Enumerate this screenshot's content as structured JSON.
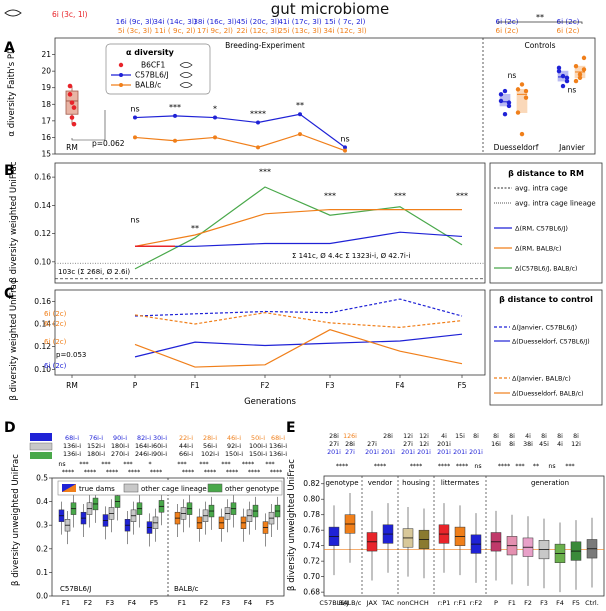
{
  "title": "gut microbiome",
  "colors": {
    "rm": "#e8242a",
    "c57": "#1f22d6",
    "balb": "#f07f1a",
    "green": "#49a84a",
    "gray": "#999999",
    "blue_axis": "#1f22d6"
  },
  "panelA": {
    "letter": "A",
    "ylabel": "α diversity Faith's PD",
    "ylim": [
      15,
      22
    ],
    "yticks": [
      "15",
      "16",
      "17",
      "18",
      "19",
      "20",
      "21"
    ],
    "section_breeding": "Breeding-Experiment",
    "section_controls": "Controls",
    "legend_title": "α diversity",
    "legend": [
      "B6CF1",
      "C57BL6/J",
      "BALB/c"
    ],
    "counts_top": [
      {
        "c57": "",
        "balb": "",
        "rm": "6i (3c, 1l)"
      },
      {
        "c57": "16i (9c, 3l)",
        "balb": "5i (3c, 3l)"
      },
      {
        "c57": "34i (14c, 3l)",
        "balb": "11i ( 9c, 2l)"
      },
      {
        "c57": "38i (16c, 3l)",
        "balb": "17i  9c, 2l)"
      },
      {
        "c57": "45i (20c, 3l)",
        "balb": "22i (12c, 3l)"
      },
      {
        "c57": "41i (17c, 3l)",
        "balb": "25i (13c, 3l)"
      },
      {
        "c57": "15i ( 7c, 2l)",
        "balb": "34i (12c, 3l)"
      },
      {
        "c57": "6i (2c)",
        "balb": "6i (2c)"
      },
      {
        "c57": "6i (2c)",
        "balb": "6i (2c)"
      }
    ],
    "ctrl_sig": "**",
    "rm_label": "RM",
    "pvalue": "p=0.062",
    "sig": [
      "ns",
      "***",
      "*",
      "****",
      "**",
      "ns"
    ],
    "ctrl_ns": [
      "ns",
      "ns"
    ],
    "ctrl_labels": [
      "Duesseldorf",
      "Janvier"
    ],
    "rm_points": [
      18.6,
      18.1,
      16.8,
      19.1,
      17.2,
      17.8
    ],
    "rm_box": {
      "q1": 17.4,
      "med": 18.2,
      "q3": 18.8,
      "lo": 16.8,
      "hi": 19.1
    },
    "c57_line": [
      17.2,
      17.3,
      17.2,
      16.9,
      17.4,
      15.4
    ],
    "balb_line": [
      16.0,
      15.8,
      16.0,
      15.4,
      16.2,
      15.2
    ],
    "duss_c57_points": [
      18.6,
      18.8,
      17.9,
      18.2,
      17.4,
      18.1
    ],
    "duss_balb_points": [
      18.9,
      19.2,
      18.4,
      17.5,
      16.2,
      18.8
    ],
    "jan_c57_points": [
      20.2,
      19.7,
      19.4,
      20.0,
      19.1,
      19.6
    ],
    "jan_balb_points": [
      20.3,
      19.8,
      20.1,
      19.4,
      19.6,
      20.8
    ]
  },
  "panelB": {
    "letter": "B",
    "ylabel": "β diversity weighted UniFrac",
    "ylim": [
      0.085,
      0.17
    ],
    "yticks": [
      "0.10",
      "0.12",
      "0.14",
      "0.16"
    ],
    "sig": [
      "ns",
      "**",
      "***",
      "***",
      "***",
      "***"
    ],
    "c57_line": [
      0.111,
      0.111,
      0.113,
      0.113,
      0.121,
      0.118
    ],
    "balb_line": [
      0.111,
      0.119,
      0.134,
      0.137,
      0.137,
      0.137
    ],
    "green_line": [
      0.095,
      0.117,
      0.153,
      0.133,
      0.139,
      0.112
    ],
    "intra_cage": 0.088,
    "intra_lineage": 0.099,
    "note_left": "103c (Σ 268i, Ø 2.6i)",
    "note_right": "Σ 141c, Ø 4.4c  Σ 1323i-i, Ø 42.7i-i",
    "legend_title": "β distance to RM",
    "legend": [
      "avg. intra cage",
      "avg. intra cage lineage",
      "Δ(RM, C57BL6/J)",
      "Δ(RM, BALB/c)",
      "Δ(C57BL6/J, BALB/c)"
    ]
  },
  "panelC": {
    "letter": "C",
    "ylabel": "β diversity weighted UniFrac",
    "ylim": [
      0.095,
      0.17
    ],
    "yticks": [
      "0.10",
      "0.12",
      "0.14",
      "0.16"
    ],
    "jan_c57": [
      0.147,
      0.149,
      0.151,
      0.15,
      0.162,
      0.147
    ],
    "duss_c57": [
      0.111,
      0.124,
      0.121,
      0.123,
      0.125,
      0.131
    ],
    "jan_balb": [
      0.148,
      0.14,
      0.15,
      0.141,
      0.137,
      0.143
    ],
    "duss_balb": [
      0.122,
      0.102,
      0.104,
      0.135,
      0.116,
      0.105
    ],
    "counts": {
      "jan_balb": "6i (2c)",
      "duss_balb": "6i (2c)",
      "jan_c57": "6i (2c)",
      "duss_c57": "6i (2c)"
    },
    "pvalue": "p=0.053",
    "xlabel": "Generations",
    "xticks": [
      "RM",
      "P",
      "F1",
      "F2",
      "F3",
      "F4",
      "F5"
    ],
    "legend_title": "β distance to control",
    "legend": [
      "Δ(Janvier, C57BL6/J)",
      "Δ(Duesseldorf, C57BL6/J)",
      "Δ(Janvier, BALB/c)",
      "Δ(Duesseldorf, BALB/c)"
    ]
  },
  "panelD": {
    "letter": "D",
    "ylabel": "β diversity unweighted UniFrac",
    "ylim": [
      0.0,
      0.5
    ],
    "yticks": [
      "0.0",
      "0.1",
      "0.2",
      "0.3",
      "0.4",
      "0.5"
    ],
    "counts_c57": [
      [
        "68i-i",
        "136i-i",
        "136i-i"
      ],
      [
        "76i-i",
        "152i-i",
        "180i-i"
      ],
      [
        "90i-i",
        "180i-i",
        "270i-i"
      ],
      [
        "82i-i",
        "164i-i",
        "246i-i"
      ],
      [
        "30i-i",
        "60i-i",
        "90i-i"
      ]
    ],
    "counts_balb": [
      [
        "22i-i",
        "44i-i",
        "66i-i"
      ],
      [
        "28i-i",
        "56i-i",
        "102i-i"
      ],
      [
        "46i-i",
        "92i-i",
        "150i-i"
      ],
      [
        "50i-i",
        "100i-i",
        "150i-i"
      ],
      [
        "68i-i",
        "136i-i",
        "136i-i"
      ]
    ],
    "sig_rows": [
      [
        "ns",
        "***",
        "***",
        "***",
        "*",
        "***",
        "***",
        "***",
        "****",
        "***"
      ],
      [
        "****",
        "****",
        "****",
        "****",
        "****",
        "****",
        "****",
        "****",
        "****",
        "****"
      ]
    ],
    "legend": [
      "true dams",
      "other cage lineage",
      "other genotype"
    ],
    "group_labels": [
      "C57BL6/J",
      "BALB/c"
    ],
    "xticks": [
      "F1",
      "F2",
      "F3",
      "F4",
      "F5",
      "F1",
      "F2",
      "F3",
      "F4",
      "F5"
    ],
    "boxes": [
      [
        [
          0.34,
          0.3,
          0.37
        ],
        [
          0.33,
          0.37,
          0.39
        ],
        [
          0.32,
          0.35,
          0.4
        ],
        [
          0.3,
          0.34,
          0.37
        ],
        [
          0.29,
          0.31,
          0.38
        ]
      ],
      [
        [
          0.33,
          0.35,
          0.37
        ],
        [
          0.31,
          0.34,
          0.36
        ],
        [
          0.31,
          0.35,
          0.37
        ],
        [
          0.31,
          0.34,
          0.36
        ],
        [
          0.29,
          0.33,
          0.36
        ]
      ]
    ]
  },
  "panelE": {
    "letter": "E",
    "ylabel": "β diversity unweighted UniFrac",
    "ylim": [
      0.675,
      0.83
    ],
    "yticks": [
      "0.68",
      "0.70",
      "0.72",
      "0.74",
      "0.76",
      "0.78",
      "0.80",
      "0.82"
    ],
    "refline": 0.735,
    "groups": [
      "genotype",
      "vendor",
      "housing",
      "littermates",
      "generation"
    ],
    "xticks": [
      "C57BL6/J",
      "BALB/c",
      "JAX",
      "TAC",
      "nonCH",
      "CH",
      "r:P1",
      "r:F1",
      "r:F2",
      "P",
      "F1",
      "F2",
      "F3",
      "F4",
      "F5",
      "Ctrl."
    ],
    "counts": [
      {
        "a": "28i",
        "b": "27i",
        "c": "201i"
      },
      {
        "a": "126i",
        "b": "28i",
        "c": "27i"
      },
      {
        "a": "",
        "b": "27i",
        "c": "201i"
      },
      {
        "a": "28i",
        "b": "",
        "c": "201i"
      },
      {
        "a": "12i",
        "b": "27i",
        "c": "201i"
      },
      {
        "a": "12i",
        "b": "12i",
        "c": "201i"
      },
      {
        "a": "4i",
        "b": "201i",
        "c": "201i"
      },
      {
        "a": "15i",
        "b": "",
        "c": "201i"
      },
      {
        "a": "8i",
        "b": "",
        "c": "201i"
      },
      {
        "a": "8i",
        "b": "16i",
        "c": ""
      },
      {
        "a": "8i",
        "b": "8i",
        "c": ""
      },
      {
        "a": "4i",
        "b": "38i",
        "c": ""
      },
      {
        "a": "8i",
        "b": "45i",
        "c": ""
      },
      {
        "a": "8i",
        "b": "4i",
        "c": ""
      },
      {
        "a": "8i",
        "b": "12i",
        "c": ""
      },
      {
        "a": "",
        "b": "",
        "c": ""
      }
    ],
    "sig": [
      "****",
      "****",
      "****",
      "****",
      "****",
      "ns",
      "****",
      "***",
      "**",
      "ns",
      "***"
    ],
    "boxes": [
      0.752,
      0.768,
      0.745,
      0.755,
      0.75,
      0.748,
      0.755,
      0.752,
      0.742,
      0.745,
      0.74,
      0.738,
      0.735,
      0.73,
      0.733,
      0.736
    ]
  }
}
